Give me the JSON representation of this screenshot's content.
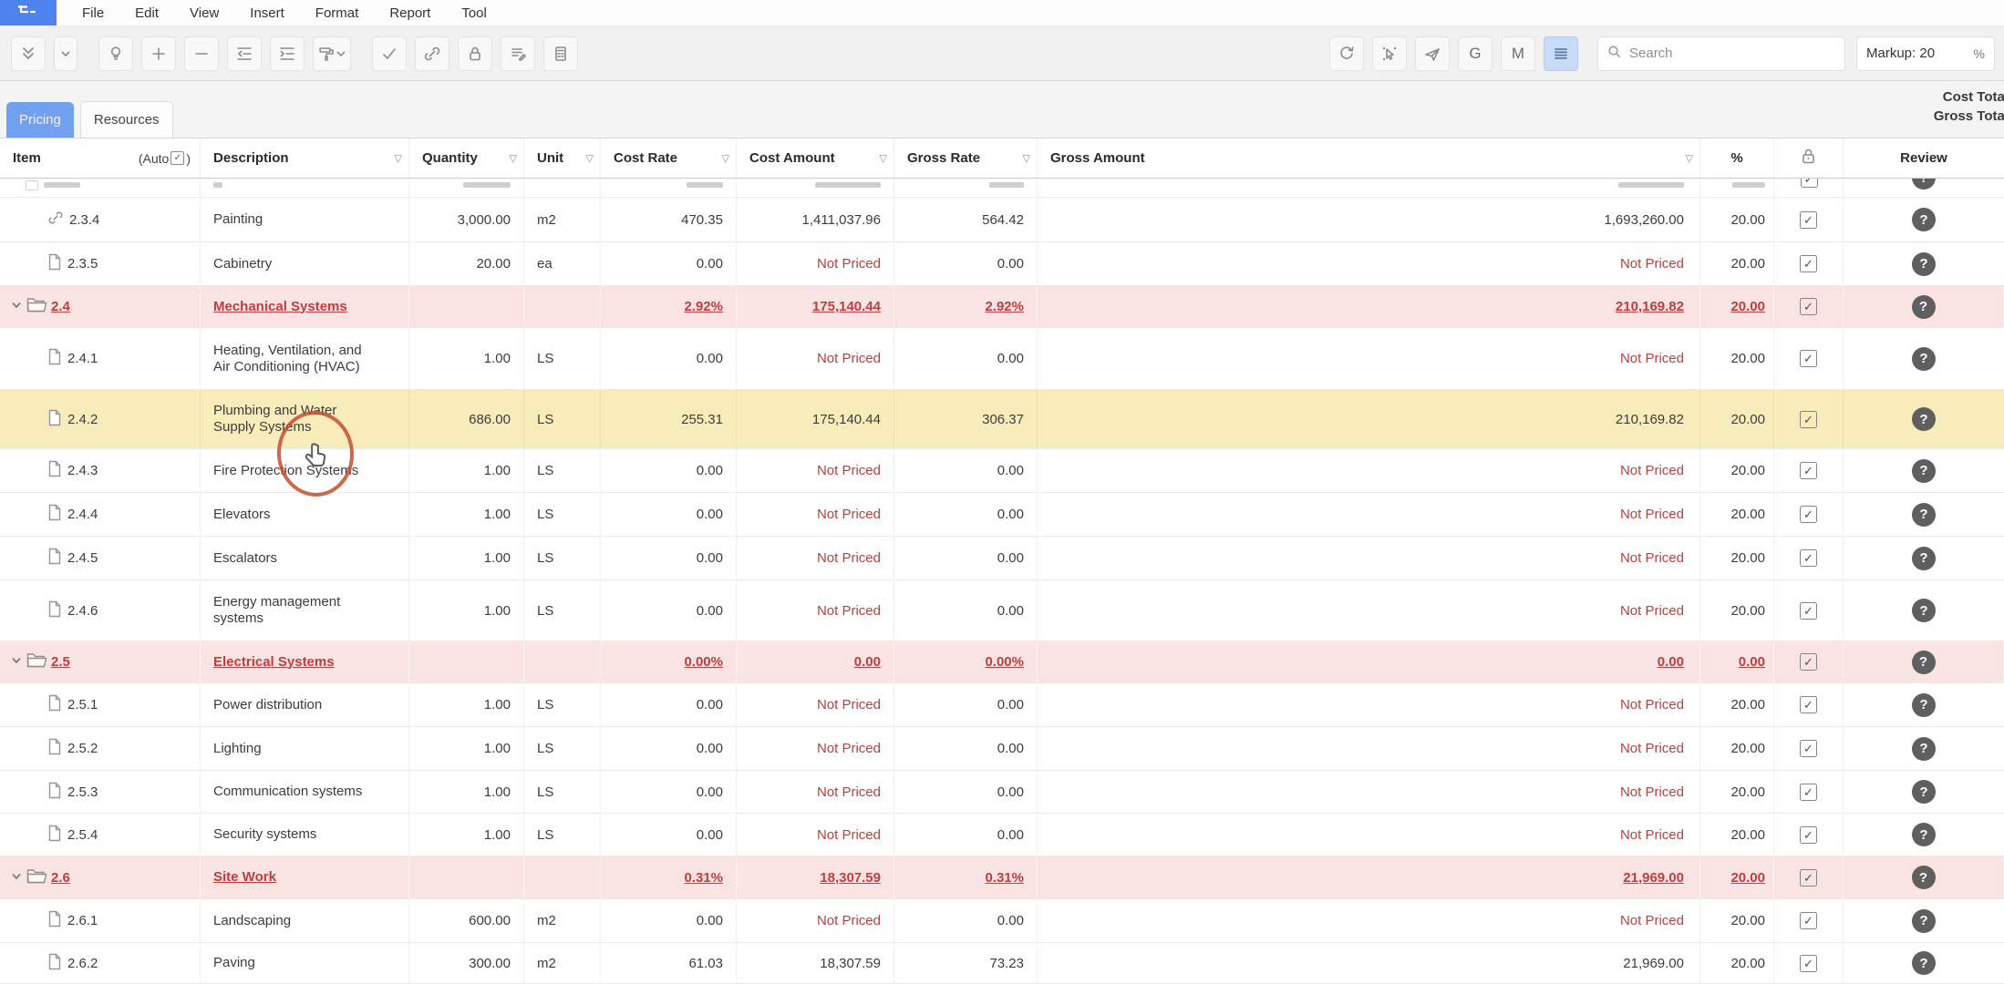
{
  "menu_bar": {
    "items": [
      "File",
      "Edit",
      "View",
      "Insert",
      "Format",
      "Report",
      "Tool"
    ]
  },
  "toolbar": {
    "left_buttons": [
      {
        "name": "collapse-all",
        "icon": "double-chevron-down"
      },
      {
        "name": "collapse-options",
        "icon": "chevron-down",
        "narrow": true
      },
      {
        "name": "idea",
        "icon": "lightbulb",
        "gap": true
      },
      {
        "name": "add-row",
        "icon": "plus"
      },
      {
        "name": "remove-row",
        "icon": "minus"
      },
      {
        "name": "outdent",
        "icon": "outdent"
      },
      {
        "name": "indent",
        "icon": "indent"
      },
      {
        "name": "format-painter",
        "icon": "paint-roller",
        "dropdown": true
      },
      {
        "name": "approve",
        "icon": "check",
        "gap": true
      },
      {
        "name": "link",
        "icon": "link"
      },
      {
        "name": "lock",
        "icon": "lock"
      },
      {
        "name": "notes",
        "icon": "notes"
      },
      {
        "name": "document-calculator",
        "icon": "document-calc"
      }
    ],
    "right_buttons": [
      {
        "name": "refresh",
        "icon": "refresh"
      },
      {
        "name": "select-mode",
        "icon": "select-cursor"
      },
      {
        "name": "send",
        "icon": "paper-plane"
      },
      {
        "name": "g-mode",
        "label": "G"
      },
      {
        "name": "m-mode",
        "label": "M"
      },
      {
        "name": "row-density",
        "icon": "hamburger",
        "active": true
      }
    ],
    "search": {
      "placeholder": "Search"
    },
    "markup": {
      "label": "Markup: 20",
      "unit": "%"
    }
  },
  "tabs": [
    {
      "label": "Pricing",
      "active": true
    },
    {
      "label": "Resources",
      "active": false
    }
  ],
  "totals_panel": {
    "cost_total_label": "Cost Total",
    "gross_total_label": "Gross Total"
  },
  "table": {
    "columns": {
      "item": "Item",
      "item_auto": "(Auto",
      "description": "Description",
      "quantity": "Quantity",
      "unit": "Unit",
      "cost_rate": "Cost Rate",
      "cost_amount": "Cost Amount",
      "gross_rate": "Gross Rate",
      "gross_amount": "Gross Amount",
      "percent": "%",
      "review": "Review"
    },
    "rows": [
      {
        "type": "child",
        "icon": "link",
        "item": "2.3.4",
        "description": "Painting",
        "quantity": "3,000.00",
        "unit": "m2",
        "cost_rate": "470.35",
        "cost_amount": "1,411,037.96",
        "gross_rate": "564.42",
        "gross_amount": "1,693,260.00",
        "percent": "20.00",
        "locked": true,
        "review": "?"
      },
      {
        "type": "child",
        "icon": "page",
        "item": "2.3.5",
        "description": "Cabinetry",
        "quantity": "20.00",
        "unit": "ea",
        "cost_rate": "0.00",
        "cost_amount": "Not Priced",
        "gross_rate": "0.00",
        "gross_amount": "Not Priced",
        "percent": "20.00",
        "locked": true,
        "review": "?"
      },
      {
        "type": "parent",
        "icon": "folder",
        "item": "2.4",
        "description": "Mechanical Systems",
        "quantity": "",
        "unit": "",
        "cost_rate": "2.92%",
        "cost_amount": "175,140.44",
        "gross_rate": "2.92%",
        "gross_amount": "210,169.82",
        "percent": "20.00",
        "locked": true,
        "review": "?"
      },
      {
        "type": "child",
        "icon": "page",
        "item": "2.4.1",
        "description": "Heating, Ventilation, and Air Conditioning (HVAC)",
        "quantity": "1.00",
        "unit": "LS",
        "cost_rate": "0.00",
        "cost_amount": "Not Priced",
        "gross_rate": "0.00",
        "gross_amount": "Not Priced",
        "percent": "20.00",
        "locked": true,
        "review": "?"
      },
      {
        "type": "child",
        "icon": "page",
        "item": "2.4.2",
        "description": "Plumbing and Water Supply Systems",
        "quantity": "686.00",
        "unit": "LS",
        "cost_rate": "255.31",
        "cost_amount": "175,140.44",
        "gross_rate": "306.37",
        "gross_amount": "210,169.82",
        "percent": "20.00",
        "locked": true,
        "review": "?",
        "highlight": true
      },
      {
        "type": "child",
        "icon": "page",
        "item": "2.4.3",
        "description": "Fire Protection Systems",
        "quantity": "1.00",
        "unit": "LS",
        "cost_rate": "0.00",
        "cost_amount": "Not Priced",
        "gross_rate": "0.00",
        "gross_amount": "Not Priced",
        "percent": "20.00",
        "locked": true,
        "review": "?"
      },
      {
        "type": "child",
        "icon": "page",
        "item": "2.4.4",
        "description": "Elevators",
        "quantity": "1.00",
        "unit": "LS",
        "cost_rate": "0.00",
        "cost_amount": "Not Priced",
        "gross_rate": "0.00",
        "gross_amount": "Not Priced",
        "percent": "20.00",
        "locked": true,
        "review": "?"
      },
      {
        "type": "child",
        "icon": "page",
        "item": "2.4.5",
        "description": "Escalators",
        "quantity": "1.00",
        "unit": "LS",
        "cost_rate": "0.00",
        "cost_amount": "Not Priced",
        "gross_rate": "0.00",
        "gross_amount": "Not Priced",
        "percent": "20.00",
        "locked": true,
        "review": "?"
      },
      {
        "type": "child",
        "icon": "page",
        "item": "2.4.6",
        "description": "Energy management systems",
        "quantity": "1.00",
        "unit": "LS",
        "cost_rate": "0.00",
        "cost_amount": "Not Priced",
        "gross_rate": "0.00",
        "gross_amount": "Not Priced",
        "percent": "20.00",
        "locked": true,
        "review": "?"
      },
      {
        "type": "parent",
        "icon": "folder",
        "item": "2.5",
        "description": "Electrical Systems",
        "quantity": "",
        "unit": "",
        "cost_rate": "0.00%",
        "cost_amount": "0.00",
        "gross_rate": "0.00%",
        "gross_amount": "0.00",
        "percent": "0.00",
        "locked": true,
        "review": "?"
      },
      {
        "type": "child",
        "icon": "page",
        "item": "2.5.1",
        "description": "Power distribution",
        "quantity": "1.00",
        "unit": "LS",
        "cost_rate": "0.00",
        "cost_amount": "Not Priced",
        "gross_rate": "0.00",
        "gross_amount": "Not Priced",
        "percent": "20.00",
        "locked": true,
        "review": "?"
      },
      {
        "type": "child",
        "icon": "page",
        "item": "2.5.2",
        "description": "Lighting",
        "quantity": "1.00",
        "unit": "LS",
        "cost_rate": "0.00",
        "cost_amount": "Not Priced",
        "gross_rate": "0.00",
        "gross_amount": "Not Priced",
        "percent": "20.00",
        "locked": true,
        "review": "?"
      },
      {
        "type": "child",
        "icon": "page",
        "item": "2.5.3",
        "description": "Communication systems",
        "quantity": "1.00",
        "unit": "LS",
        "cost_rate": "0.00",
        "cost_amount": "Not Priced",
        "gross_rate": "0.00",
        "gross_amount": "Not Priced",
        "percent": "20.00",
        "locked": true,
        "review": "?"
      },
      {
        "type": "child",
        "icon": "page",
        "item": "2.5.4",
        "description": "Security systems",
        "quantity": "1.00",
        "unit": "LS",
        "cost_rate": "0.00",
        "cost_amount": "Not Priced",
        "gross_rate": "0.00",
        "gross_amount": "Not Priced",
        "percent": "20.00",
        "locked": true,
        "review": "?"
      },
      {
        "type": "parent",
        "icon": "folder",
        "item": "2.6",
        "description": "Site Work",
        "quantity": "",
        "unit": "",
        "cost_rate": "0.31%",
        "cost_amount": "18,307.59",
        "gross_rate": "0.31%",
        "gross_amount": "21,969.00",
        "percent": "20.00",
        "locked": true,
        "review": "?"
      },
      {
        "type": "child",
        "icon": "page",
        "item": "2.6.1",
        "description": "Landscaping",
        "quantity": "600.00",
        "unit": "m2",
        "cost_rate": "0.00",
        "cost_amount": "Not Priced",
        "gross_rate": "0.00",
        "gross_amount": "Not Priced",
        "percent": "20.00",
        "locked": true,
        "review": "?"
      },
      {
        "type": "child",
        "icon": "page",
        "item": "2.6.2",
        "description": "Paving",
        "quantity": "300.00",
        "unit": "m2",
        "cost_rate": "61.03",
        "cost_amount": "18,307.59",
        "gross_rate": "73.23",
        "gross_amount": "21,969.00",
        "percent": "20.00",
        "locked": true,
        "review": "?"
      }
    ]
  },
  "annotation": {
    "shape": "circle-highlight-with-pointer-cursor"
  },
  "colors": {
    "accent_blue": "#70a0ee",
    "app_icon_blue": "#4d82ef",
    "parent_row_pink": "#fae3e3",
    "highlight_yellow": "#f8edba",
    "parent_text_red": "#c03d3d",
    "not_priced_red": "#b4423f"
  }
}
